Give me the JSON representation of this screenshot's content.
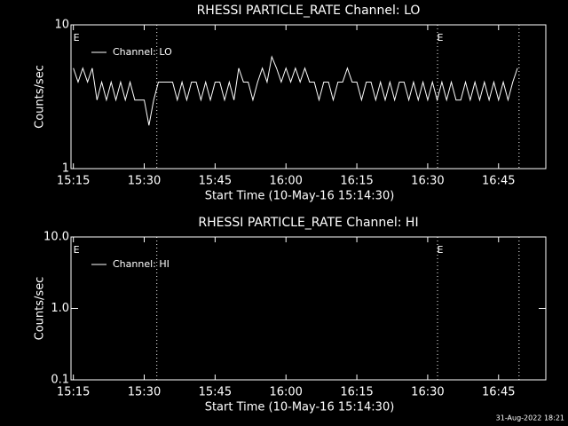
{
  "chart_data": [
    {
      "type": "line",
      "title": "RHESSI PARTICLE_RATE Channel: LO",
      "xlabel": "Start Time (10-May-16 15:14:30)",
      "ylabel": "Counts/sec",
      "log_y": true,
      "ylim": [
        1,
        10
      ],
      "yticks": [
        1,
        10
      ],
      "xlim": [
        "15:14:30",
        "16:55"
      ],
      "xticks": [
        "15:15",
        "15:30",
        "15:45",
        "16:00",
        "16:15",
        "16:30",
        "16:45"
      ],
      "x": [
        "15:15",
        "15:16",
        "15:17",
        "15:18",
        "15:19",
        "15:20",
        "15:21",
        "15:22",
        "15:23",
        "15:24",
        "15:25",
        "15:26",
        "15:27",
        "15:28",
        "15:29",
        "15:30",
        "15:31",
        "15:32",
        "15:33",
        "15:34",
        "15:35",
        "15:36",
        "15:37",
        "15:38",
        "15:39",
        "15:40",
        "15:41",
        "15:42",
        "15:43",
        "15:44",
        "15:45",
        "15:46",
        "15:47",
        "15:48",
        "15:49",
        "15:50",
        "15:51",
        "15:52",
        "15:53",
        "15:54",
        "15:55",
        "15:56",
        "15:57",
        "15:58",
        "15:59",
        "16:00",
        "16:01",
        "16:02",
        "16:03",
        "16:04",
        "16:05",
        "16:06",
        "16:07",
        "16:08",
        "16:09",
        "16:10",
        "16:11",
        "16:12",
        "16:13",
        "16:14",
        "16:15",
        "16:16",
        "16:17",
        "16:18",
        "16:19",
        "16:20",
        "16:21",
        "16:22",
        "16:23",
        "16:24",
        "16:25",
        "16:26",
        "16:27",
        "16:28",
        "16:29",
        "16:30",
        "16:31",
        "16:32",
        "16:33",
        "16:34",
        "16:35",
        "16:36",
        "16:37",
        "16:38",
        "16:39",
        "16:40",
        "16:41",
        "16:42",
        "16:43",
        "16:44",
        "16:45",
        "16:46",
        "16:47",
        "16:48",
        "16:49"
      ],
      "series": [
        {
          "name": "Channel: LO",
          "color": "#ffffff",
          "values": [
            5,
            4,
            5,
            4,
            5,
            3,
            4,
            3,
            4,
            3,
            4,
            3,
            4,
            3,
            3,
            3,
            2,
            3,
            4,
            4,
            4,
            4,
            3,
            4,
            3,
            4,
            4,
            3,
            4,
            3,
            4,
            4,
            3,
            4,
            3,
            5,
            4,
            4,
            3,
            4,
            5,
            4,
            6,
            5,
            4,
            5,
            4,
            5,
            4,
            5,
            4,
            4,
            3,
            4,
            4,
            3,
            4,
            4,
            5,
            4,
            4,
            3,
            4,
            4,
            3,
            4,
            3,
            4,
            3,
            4,
            4,
            3,
            4,
            3,
            4,
            3,
            4,
            3,
            4,
            3,
            4,
            3,
            3,
            4,
            3,
            4,
            3,
            4,
            3,
            4,
            3,
            4,
            3,
            4,
            5
          ]
        }
      ],
      "vlines": [
        "15:32:40",
        "16:32:05",
        "16:49:20"
      ],
      "annotations": [
        {
          "text": "E",
          "x": "15:15"
        },
        {
          "text": "E",
          "x": "16:32"
        }
      ]
    },
    {
      "type": "line",
      "title": "RHESSI PARTICLE_RATE Channel: HI",
      "xlabel": "Start Time (10-May-16 15:14:30)",
      "ylabel": "Counts/sec",
      "log_y": true,
      "ylim": [
        0.1,
        10
      ],
      "yticks": [
        {
          "value": 0.1,
          "label": "0.1"
        },
        {
          "value": 1,
          "label": "1.0"
        },
        {
          "value": 10,
          "label": "10.0"
        }
      ],
      "xlim": [
        "15:14:30",
        "16:55"
      ],
      "xticks": [
        "15:15",
        "15:30",
        "15:45",
        "16:00",
        "16:15",
        "16:30",
        "16:45"
      ],
      "x": [],
      "series": [
        {
          "name": "Channel: HI",
          "color": "#ffffff",
          "values": []
        }
      ],
      "vlines": [
        "15:32:40",
        "16:32:05",
        "16:49:20"
      ],
      "annotations": [
        {
          "text": "E",
          "x": "15:15"
        },
        {
          "text": "E",
          "x": "16:32"
        }
      ]
    }
  ],
  "footer": "31-Aug-2022 18:21"
}
